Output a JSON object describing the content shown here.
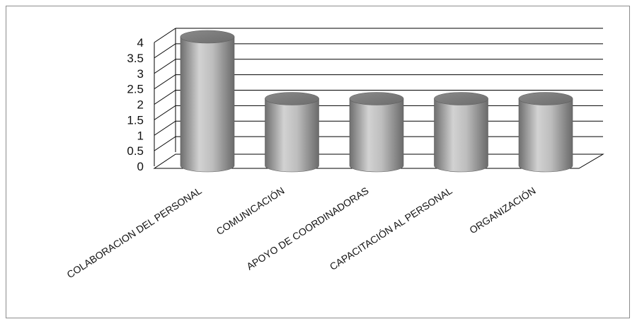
{
  "chart_data": {
    "type": "bar",
    "style": "3d-cylinder",
    "categories": [
      "COLABORACION DEL PERSONAL",
      "COMUNICACIÓN",
      "APOYO DE COORDINADORAS",
      "CAPACITACIÓN AL PERSONAL",
      "ORGANIZACIÓN"
    ],
    "values": [
      4,
      2,
      2,
      2,
      2
    ],
    "ylim": [
      0,
      4
    ],
    "ytick_labels": [
      "0",
      "0.5",
      "1",
      "1.5",
      "2",
      "2.5",
      "3",
      "3.5",
      "4"
    ],
    "grid": true,
    "legend": "none",
    "colors": {
      "bar": "#9a9a9a",
      "grid": "#000000",
      "text": "#111111"
    }
  }
}
